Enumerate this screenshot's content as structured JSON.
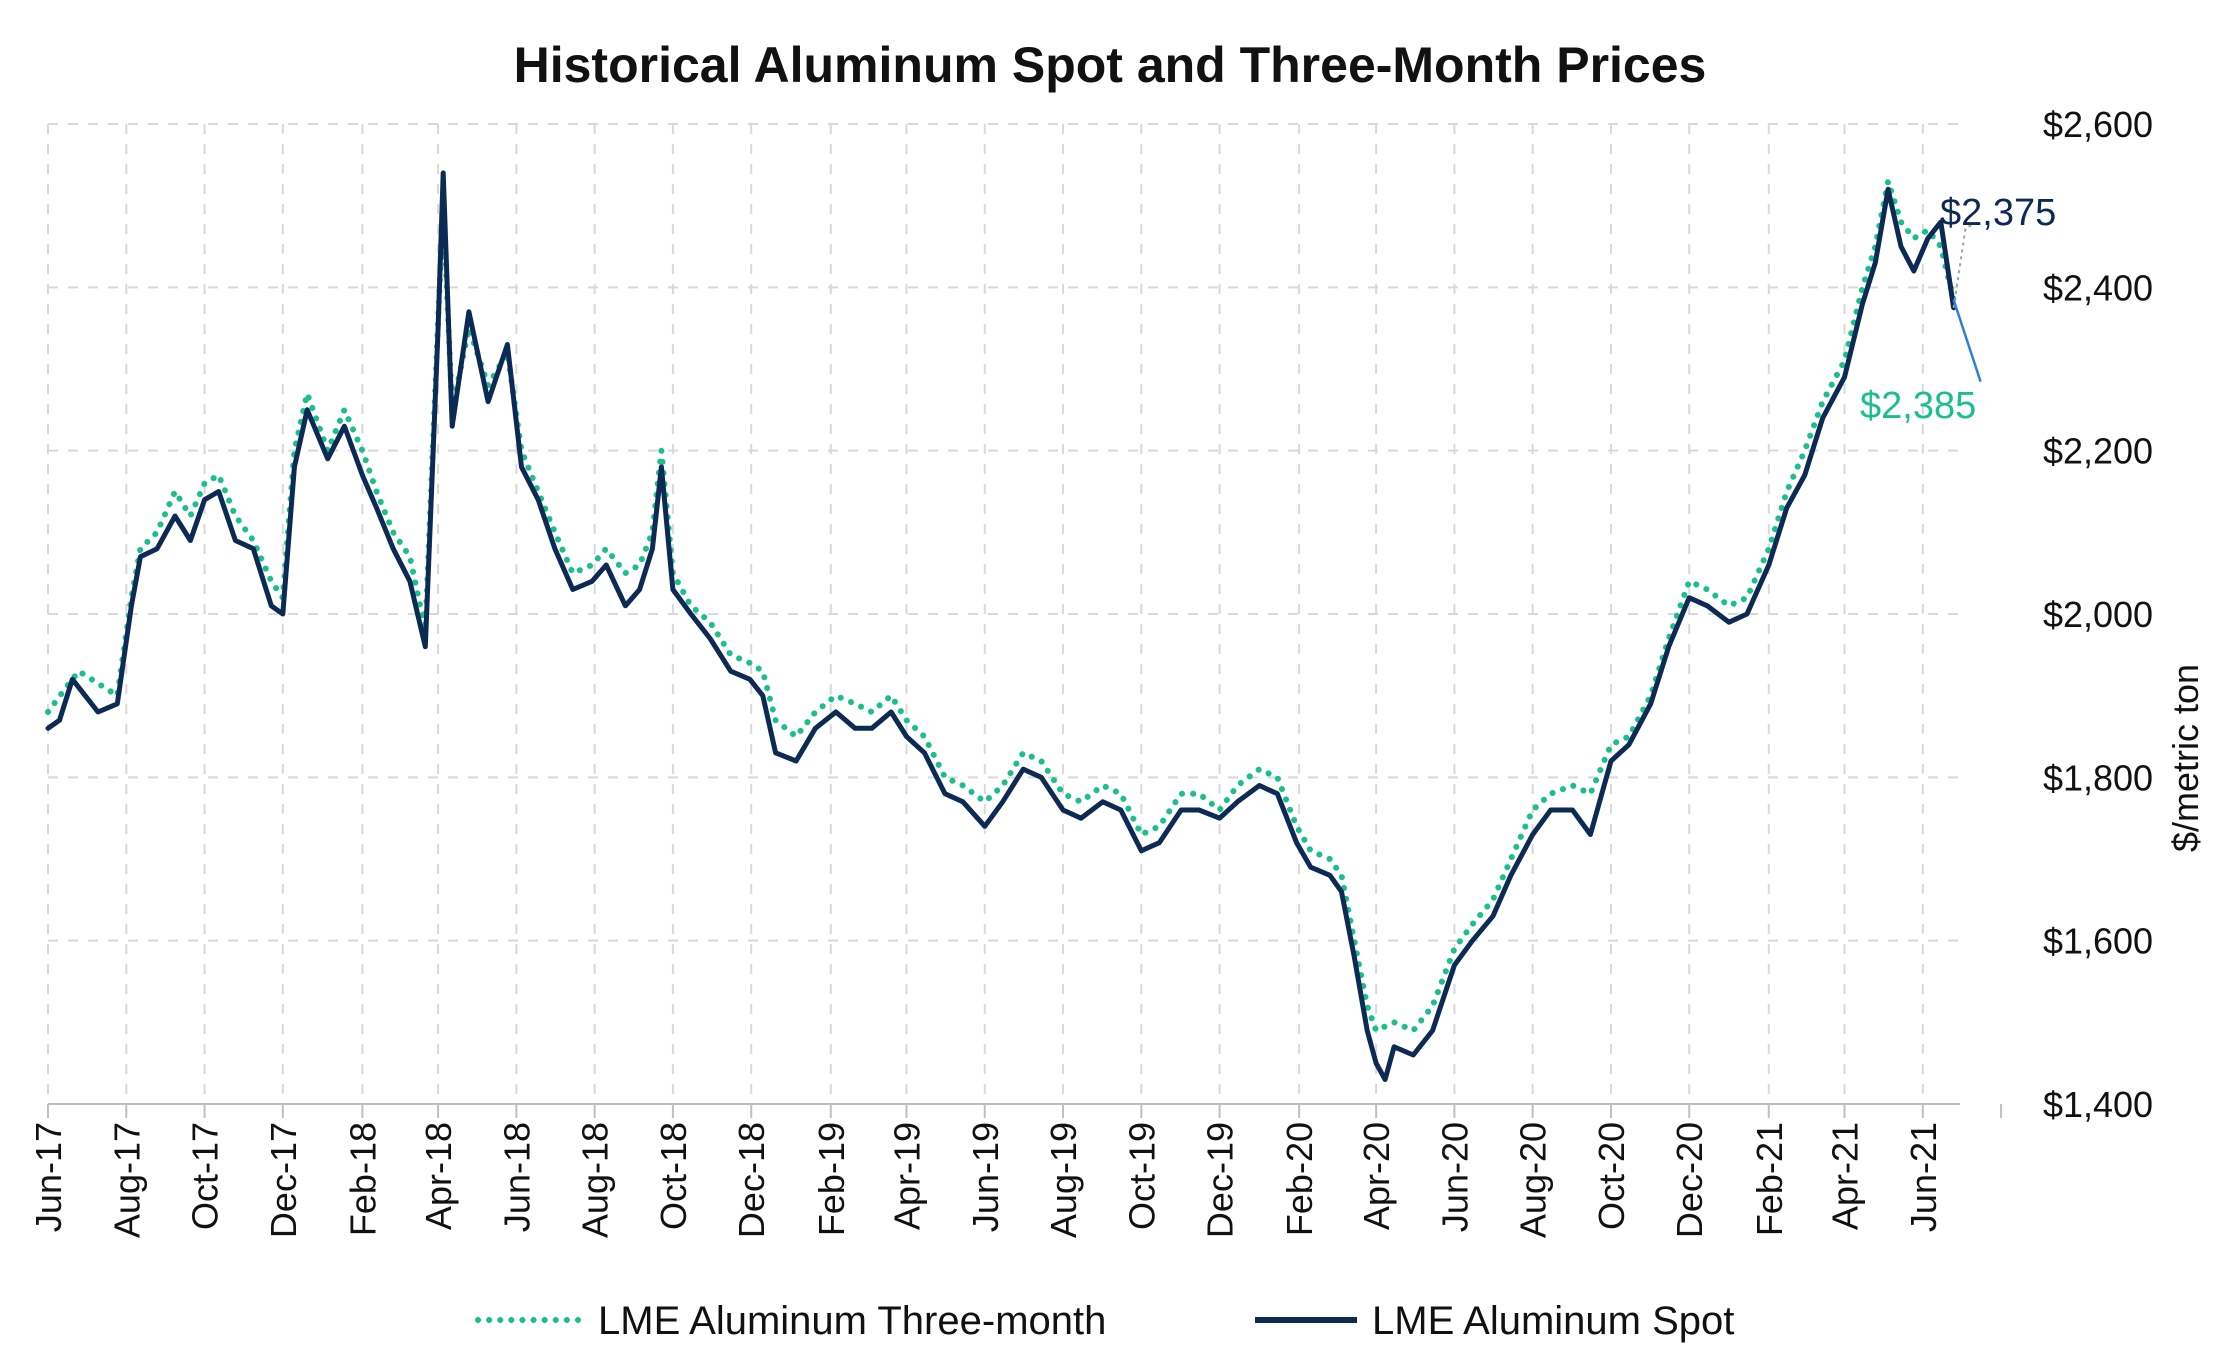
{
  "chart_data": {
    "type": "line",
    "title": "Historical Aluminum Spot and Three-Month Prices",
    "ylabel": "$/metric ton",
    "ylim": [
      1400,
      2600
    ],
    "xlim": [
      "2017-06-01",
      "2021-06-30"
    ],
    "yticks": [
      {
        "value": 1400,
        "label": "$1,400"
      },
      {
        "value": 1600,
        "label": "$1,600"
      },
      {
        "value": 1800,
        "label": "$1,800"
      },
      {
        "value": 2000,
        "label": "$2,000"
      },
      {
        "value": 2200,
        "label": "$2,200"
      },
      {
        "value": 2400,
        "label": "$2,400"
      },
      {
        "value": 2600,
        "label": "$2,600"
      }
    ],
    "xticks": [
      {
        "date": "2017-06-01",
        "label": "Jun-17"
      },
      {
        "date": "2017-08-01",
        "label": "Aug-17"
      },
      {
        "date": "2017-10-01",
        "label": "Oct-17"
      },
      {
        "date": "2017-12-01",
        "label": "Dec-17"
      },
      {
        "date": "2018-02-01",
        "label": "Feb-18"
      },
      {
        "date": "2018-04-01",
        "label": "Apr-18"
      },
      {
        "date": "2018-06-01",
        "label": "Jun-18"
      },
      {
        "date": "2018-08-01",
        "label": "Aug-18"
      },
      {
        "date": "2018-10-01",
        "label": "Oct-18"
      },
      {
        "date": "2018-12-01",
        "label": "Dec-18"
      },
      {
        "date": "2019-02-01",
        "label": "Feb-19"
      },
      {
        "date": "2019-04-01",
        "label": "Apr-19"
      },
      {
        "date": "2019-06-01",
        "label": "Jun-19"
      },
      {
        "date": "2019-08-01",
        "label": "Aug-19"
      },
      {
        "date": "2019-10-01",
        "label": "Oct-19"
      },
      {
        "date": "2019-12-01",
        "label": "Dec-19"
      },
      {
        "date": "2020-02-01",
        "label": "Feb-20"
      },
      {
        "date": "2020-04-01",
        "label": "Apr-20"
      },
      {
        "date": "2020-06-01",
        "label": "Jun-20"
      },
      {
        "date": "2020-08-01",
        "label": "Aug-20"
      },
      {
        "date": "2020-10-01",
        "label": "Oct-20"
      },
      {
        "date": "2020-12-01",
        "label": "Dec-20"
      },
      {
        "date": "2021-02-01",
        "label": "Feb-21"
      },
      {
        "date": "2021-04-01",
        "label": "Apr-21"
      },
      {
        "date": "2021-06-01",
        "label": "Jun-21"
      }
    ],
    "grid": true,
    "legend_position": "bottom",
    "series": [
      {
        "name": "LME Aluminum Three-month",
        "color": "#1bbf8e",
        "style": "dotted",
        "points": [
          [
            "2017-06-01",
            1880
          ],
          [
            "2017-06-15",
            1910
          ],
          [
            "2017-06-25",
            1930
          ],
          [
            "2017-07-10",
            1915
          ],
          [
            "2017-07-25",
            1900
          ],
          [
            "2017-08-05",
            2020
          ],
          [
            "2017-08-12",
            2080
          ],
          [
            "2017-08-25",
            2100
          ],
          [
            "2017-09-08",
            2150
          ],
          [
            "2017-09-20",
            2120
          ],
          [
            "2017-10-01",
            2160
          ],
          [
            "2017-10-12",
            2170
          ],
          [
            "2017-10-25",
            2120
          ],
          [
            "2017-11-08",
            2090
          ],
          [
            "2017-11-22",
            2040
          ],
          [
            "2017-12-01",
            2020
          ],
          [
            "2017-12-10",
            2200
          ],
          [
            "2017-12-20",
            2270
          ],
          [
            "2018-01-05",
            2200
          ],
          [
            "2018-01-18",
            2250
          ],
          [
            "2018-02-01",
            2200
          ],
          [
            "2018-02-12",
            2150
          ],
          [
            "2018-02-25",
            2100
          ],
          [
            "2018-03-10",
            2070
          ],
          [
            "2018-03-22",
            1980
          ],
          [
            "2018-04-01",
            2360
          ],
          [
            "2018-04-05",
            2500
          ],
          [
            "2018-04-12",
            2250
          ],
          [
            "2018-04-25",
            2350
          ],
          [
            "2018-05-10",
            2280
          ],
          [
            "2018-05-25",
            2320
          ],
          [
            "2018-06-05",
            2200
          ],
          [
            "2018-06-18",
            2150
          ],
          [
            "2018-07-01",
            2100
          ],
          [
            "2018-07-15",
            2050
          ],
          [
            "2018-07-30",
            2060
          ],
          [
            "2018-08-10",
            2080
          ],
          [
            "2018-08-25",
            2050
          ],
          [
            "2018-09-05",
            2060
          ],
          [
            "2018-09-15",
            2100
          ],
          [
            "2018-09-22",
            2200
          ],
          [
            "2018-10-01",
            2050
          ],
          [
            "2018-10-15",
            2010
          ],
          [
            "2018-10-30",
            1990
          ],
          [
            "2018-11-15",
            1950
          ],
          [
            "2018-11-30",
            1940
          ],
          [
            "2018-12-10",
            1930
          ],
          [
            "2018-12-20",
            1870
          ],
          [
            "2019-01-05",
            1850
          ],
          [
            "2019-01-20",
            1880
          ],
          [
            "2019-02-05",
            1900
          ],
          [
            "2019-02-20",
            1890
          ],
          [
            "2019-03-05",
            1880
          ],
          [
            "2019-03-20",
            1900
          ],
          [
            "2019-04-01",
            1870
          ],
          [
            "2019-04-15",
            1850
          ],
          [
            "2019-05-01",
            1800
          ],
          [
            "2019-05-15",
            1790
          ],
          [
            "2019-06-01",
            1770
          ],
          [
            "2019-06-15",
            1790
          ],
          [
            "2019-07-01",
            1830
          ],
          [
            "2019-07-15",
            1820
          ],
          [
            "2019-08-01",
            1780
          ],
          [
            "2019-08-15",
            1770
          ],
          [
            "2019-09-01",
            1790
          ],
          [
            "2019-09-15",
            1780
          ],
          [
            "2019-10-01",
            1730
          ],
          [
            "2019-10-15",
            1740
          ],
          [
            "2019-11-01",
            1780
          ],
          [
            "2019-11-15",
            1780
          ],
          [
            "2019-12-01",
            1760
          ],
          [
            "2019-12-15",
            1790
          ],
          [
            "2020-01-01",
            1810
          ],
          [
            "2020-01-15",
            1800
          ],
          [
            "2020-01-30",
            1740
          ],
          [
            "2020-02-10",
            1710
          ],
          [
            "2020-02-25",
            1700
          ],
          [
            "2020-03-05",
            1680
          ],
          [
            "2020-03-15",
            1600
          ],
          [
            "2020-03-25",
            1520
          ],
          [
            "2020-04-01",
            1490
          ],
          [
            "2020-04-15",
            1500
          ],
          [
            "2020-04-30",
            1490
          ],
          [
            "2020-05-15",
            1520
          ],
          [
            "2020-06-01",
            1590
          ],
          [
            "2020-06-15",
            1620
          ],
          [
            "2020-07-01",
            1650
          ],
          [
            "2020-07-15",
            1700
          ],
          [
            "2020-08-01",
            1760
          ],
          [
            "2020-08-15",
            1780
          ],
          [
            "2020-09-01",
            1790
          ],
          [
            "2020-09-15",
            1780
          ],
          [
            "2020-10-01",
            1840
          ],
          [
            "2020-10-15",
            1850
          ],
          [
            "2020-11-01",
            1900
          ],
          [
            "2020-11-15",
            1970
          ],
          [
            "2020-12-01",
            2040
          ],
          [
            "2020-12-15",
            2030
          ],
          [
            "2021-01-01",
            2010
          ],
          [
            "2021-01-15",
            2020
          ],
          [
            "2021-02-01",
            2080
          ],
          [
            "2021-02-15",
            2150
          ],
          [
            "2021-03-01",
            2200
          ],
          [
            "2021-03-15",
            2260
          ],
          [
            "2021-04-01",
            2310
          ],
          [
            "2021-04-15",
            2400
          ],
          [
            "2021-04-25",
            2450
          ],
          [
            "2021-05-05",
            2530
          ],
          [
            "2021-05-15",
            2480
          ],
          [
            "2021-05-25",
            2460
          ],
          [
            "2021-06-05",
            2470
          ],
          [
            "2021-06-15",
            2450
          ],
          [
            "2021-06-25",
            2385
          ]
        ]
      },
      {
        "name": "LME Aluminum Spot",
        "color": "#0d2a55",
        "style": "solid",
        "points": [
          [
            "2017-06-01",
            1860
          ],
          [
            "2017-06-10",
            1870
          ],
          [
            "2017-06-20",
            1920
          ],
          [
            "2017-06-30",
            1900
          ],
          [
            "2017-07-10",
            1880
          ],
          [
            "2017-07-25",
            1890
          ],
          [
            "2017-08-05",
            2010
          ],
          [
            "2017-08-12",
            2070
          ],
          [
            "2017-08-25",
            2080
          ],
          [
            "2017-09-08",
            2120
          ],
          [
            "2017-09-20",
            2090
          ],
          [
            "2017-10-01",
            2140
          ],
          [
            "2017-10-12",
            2150
          ],
          [
            "2017-10-25",
            2090
          ],
          [
            "2017-11-08",
            2080
          ],
          [
            "2017-11-22",
            2010
          ],
          [
            "2017-12-01",
            2000
          ],
          [
            "2017-12-10",
            2180
          ],
          [
            "2017-12-20",
            2250
          ],
          [
            "2018-01-05",
            2190
          ],
          [
            "2018-01-18",
            2230
          ],
          [
            "2018-02-01",
            2170
          ],
          [
            "2018-02-12",
            2130
          ],
          [
            "2018-02-25",
            2080
          ],
          [
            "2018-03-10",
            2040
          ],
          [
            "2018-03-22",
            1960
          ],
          [
            "2018-04-01",
            2350
          ],
          [
            "2018-04-05",
            2540
          ],
          [
            "2018-04-12",
            2230
          ],
          [
            "2018-04-25",
            2370
          ],
          [
            "2018-05-10",
            2260
          ],
          [
            "2018-05-25",
            2330
          ],
          [
            "2018-06-05",
            2180
          ],
          [
            "2018-06-18",
            2140
          ],
          [
            "2018-07-01",
            2080
          ],
          [
            "2018-07-15",
            2030
          ],
          [
            "2018-07-30",
            2040
          ],
          [
            "2018-08-10",
            2060
          ],
          [
            "2018-08-25",
            2010
          ],
          [
            "2018-09-05",
            2030
          ],
          [
            "2018-09-15",
            2080
          ],
          [
            "2018-09-22",
            2180
          ],
          [
            "2018-10-01",
            2030
          ],
          [
            "2018-10-15",
            2000
          ],
          [
            "2018-10-30",
            1970
          ],
          [
            "2018-11-15",
            1930
          ],
          [
            "2018-11-30",
            1920
          ],
          [
            "2018-12-10",
            1900
          ],
          [
            "2018-12-20",
            1830
          ],
          [
            "2019-01-05",
            1820
          ],
          [
            "2019-01-20",
            1860
          ],
          [
            "2019-02-05",
            1880
          ],
          [
            "2019-02-20",
            1860
          ],
          [
            "2019-03-05",
            1860
          ],
          [
            "2019-03-20",
            1880
          ],
          [
            "2019-04-01",
            1850
          ],
          [
            "2019-04-15",
            1830
          ],
          [
            "2019-05-01",
            1780
          ],
          [
            "2019-05-15",
            1770
          ],
          [
            "2019-06-01",
            1740
          ],
          [
            "2019-06-15",
            1770
          ],
          [
            "2019-07-01",
            1810
          ],
          [
            "2019-07-15",
            1800
          ],
          [
            "2019-08-01",
            1760
          ],
          [
            "2019-08-15",
            1750
          ],
          [
            "2019-09-01",
            1770
          ],
          [
            "2019-09-15",
            1760
          ],
          [
            "2019-10-01",
            1710
          ],
          [
            "2019-10-15",
            1720
          ],
          [
            "2019-11-01",
            1760
          ],
          [
            "2019-11-15",
            1760
          ],
          [
            "2019-12-01",
            1750
          ],
          [
            "2019-12-15",
            1770
          ],
          [
            "2020-01-01",
            1790
          ],
          [
            "2020-01-15",
            1780
          ],
          [
            "2020-01-30",
            1720
          ],
          [
            "2020-02-10",
            1690
          ],
          [
            "2020-02-25",
            1680
          ],
          [
            "2020-03-05",
            1660
          ],
          [
            "2020-03-15",
            1580
          ],
          [
            "2020-03-25",
            1490
          ],
          [
            "2020-04-01",
            1450
          ],
          [
            "2020-04-08",
            1430
          ],
          [
            "2020-04-15",
            1470
          ],
          [
            "2020-04-30",
            1460
          ],
          [
            "2020-05-15",
            1490
          ],
          [
            "2020-06-01",
            1570
          ],
          [
            "2020-06-15",
            1600
          ],
          [
            "2020-07-01",
            1630
          ],
          [
            "2020-07-15",
            1680
          ],
          [
            "2020-08-01",
            1730
          ],
          [
            "2020-08-15",
            1760
          ],
          [
            "2020-09-01",
            1760
          ],
          [
            "2020-09-15",
            1730
          ],
          [
            "2020-10-01",
            1820
          ],
          [
            "2020-10-15",
            1840
          ],
          [
            "2020-11-01",
            1890
          ],
          [
            "2020-11-15",
            1960
          ],
          [
            "2020-12-01",
            2020
          ],
          [
            "2020-12-15",
            2010
          ],
          [
            "2021-01-01",
            1990
          ],
          [
            "2021-01-15",
            2000
          ],
          [
            "2021-02-01",
            2060
          ],
          [
            "2021-02-15",
            2130
          ],
          [
            "2021-03-01",
            2170
          ],
          [
            "2021-03-15",
            2240
          ],
          [
            "2021-04-01",
            2290
          ],
          [
            "2021-04-15",
            2380
          ],
          [
            "2021-04-25",
            2430
          ],
          [
            "2021-05-05",
            2520
          ],
          [
            "2021-05-15",
            2450
          ],
          [
            "2021-05-25",
            2420
          ],
          [
            "2021-06-05",
            2460
          ],
          [
            "2021-06-15",
            2480
          ],
          [
            "2021-06-25",
            2375
          ]
        ]
      }
    ],
    "annotations": [
      {
        "text": "$2,375",
        "series": "LME Aluminum Spot",
        "date": "2021-06-25",
        "value": 2375,
        "color": "#0d2a55"
      },
      {
        "text": "$2,385",
        "series": "LME Aluminum Three-month",
        "date": "2021-06-25",
        "value": 2385,
        "color": "#1bbf8e"
      }
    ]
  }
}
